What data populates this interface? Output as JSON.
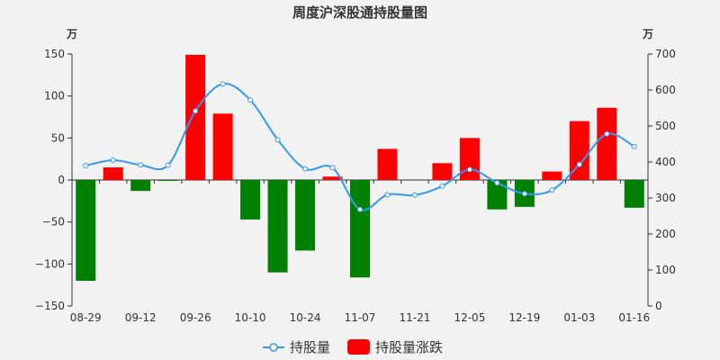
{
  "chart_data": {
    "type": "bar+line",
    "title": "周度沪深股通持股量图",
    "left_unit": "万",
    "right_unit": "万",
    "x_ticks": [
      "08-29",
      "09-12",
      "09-26",
      "10-10",
      "10-24",
      "11-07",
      "11-21",
      "12-05",
      "12-19",
      "01-03",
      "01-16"
    ],
    "left_ticks": [
      "150",
      "100",
      "50",
      "0",
      "−50",
      "−100",
      "−150"
    ],
    "right_ticks": [
      "700",
      "600",
      "500",
      "400",
      "300",
      "200",
      "100",
      "0"
    ],
    "ylim_left": [
      -150,
      150
    ],
    "ylim_right": [
      0,
      700
    ],
    "bars": {
      "name": "持股量涨跌",
      "values": [
        -120,
        15,
        -13,
        -1,
        149,
        79,
        -47,
        -110,
        -84,
        4,
        -116,
        37,
        0,
        20,
        50,
        -35,
        -32,
        10,
        70,
        86,
        -33
      ]
    },
    "line": {
      "name": "持股量",
      "values": [
        390,
        405,
        392,
        391,
        542,
        617,
        572,
        462,
        381,
        384,
        268,
        309,
        308,
        333,
        379,
        342,
        312,
        322,
        393,
        478,
        443
      ]
    },
    "colors": {
      "up": "#ff0000",
      "down": "#008000",
      "line": "#3398f5"
    },
    "legend_position": "bottom-center"
  }
}
